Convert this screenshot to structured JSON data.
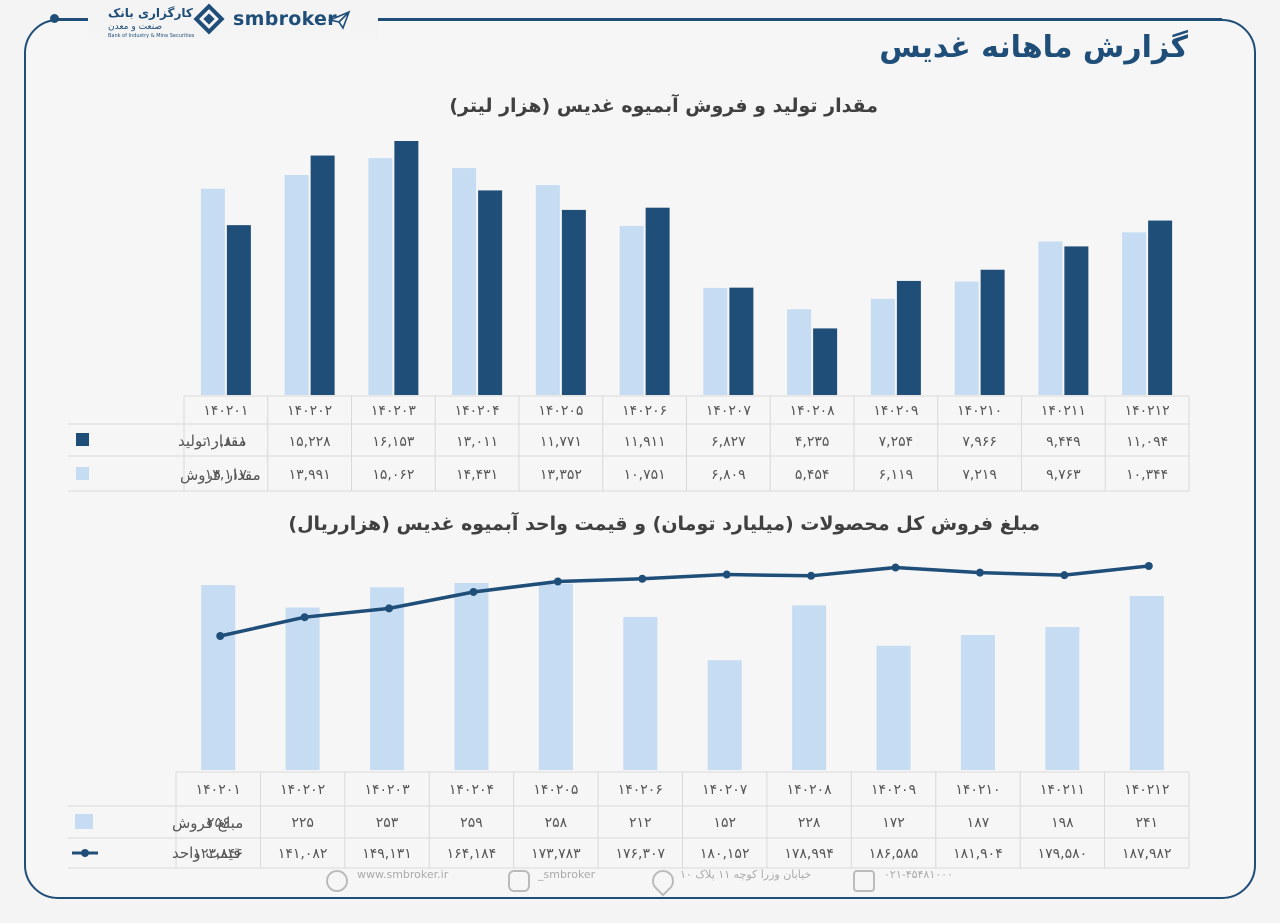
{
  "header": {
    "brand": "smbroker",
    "bank_name": "کارگزاری بانک",
    "bank_sub": "صنعت و معدن",
    "bank_en": "Bank of Industry & Mine Securities",
    "title": "گزارش ماهانه غدیس"
  },
  "colors": {
    "dark": "#1f4e79",
    "light": "#c5dcf2",
    "grid": "#d9d9d9"
  },
  "chart1": {
    "title": "مقدار تولید و فروش آبمیوه غدیس (هزار لیتر)",
    "legend_production": "مقدار تولید",
    "legend_sales": "مقدار فروش"
  },
  "chart2": {
    "title": "مبلغ فروش کل محصولات (میلیارد تومان) و قیمت واحد آبمیوه غدیس (هزارریال)",
    "legend_amount": "مبلغ فروش",
    "legend_price": "قیمت واحد"
  },
  "chart_data": [
    {
      "type": "bar",
      "categories": [
        "۱۴۰۲۰۱",
        "۱۴۰۲۰۲",
        "۱۴۰۲۰۳",
        "۱۴۰۲۰۴",
        "۱۴۰۲۰۵",
        "۱۴۰۲۰۶",
        "۱۴۰۲۰۷",
        "۱۴۰۲۰۸",
        "۱۴۰۲۰۹",
        "۱۴۰۲۱۰",
        "۱۴۰۲۱۱",
        "۱۴۰۲۱۲"
      ],
      "series": [
        {
          "name": "مقدار تولید",
          "values": [
            10801,
            15228,
            16153,
            13011,
            11771,
            11911,
            6827,
            4235,
            7254,
            7966,
            9449,
            11094
          ],
          "labels": [
            "۱۰,۸۰۱",
            "۱۵,۲۲۸",
            "۱۶,۱۵۳",
            "۱۳,۰۱۱",
            "۱۱,۷۷۱",
            "۱۱,۹۱۱",
            "۶,۸۲۷",
            "۴,۲۳۵",
            "۷,۲۵۴",
            "۷,۹۶۶",
            "۹,۴۴۹",
            "۱۱,۰۹۴"
          ]
        },
        {
          "name": "مقدار فروش",
          "values": [
            13117,
            13991,
            15062,
            14431,
            13352,
            10751,
            6809,
            5454,
            6119,
            7219,
            9763,
            10344
          ],
          "labels": [
            "۱۳,۱۱۷",
            "۱۳,۹۹۱",
            "۱۵,۰۶۲",
            "۱۴,۴۳۱",
            "۱۳,۳۵۲",
            "۱۰,۷۵۱",
            "۶,۸۰۹",
            "۵,۴۵۴",
            "۶,۱۱۹",
            "۷,۲۱۹",
            "۹,۷۶۳",
            "۱۰,۳۴۴"
          ]
        }
      ],
      "ylim": [
        0,
        16153
      ]
    },
    {
      "type": "bar",
      "categories": [
        "۱۴۰۲۰۱",
        "۱۴۰۲۰۲",
        "۱۴۰۲۰۳",
        "۱۴۰۲۰۴",
        "۱۴۰۲۰۵",
        "۱۴۰۲۰۶",
        "۱۴۰۲۰۷",
        "۱۴۰۲۰۸",
        "۱۴۰۲۰۹",
        "۱۴۰۲۱۰",
        "۱۴۰۲۱۱",
        "۱۴۰۲۱۲"
      ],
      "series": [
        {
          "name": "مبلغ فروش",
          "kind": "bar",
          "values": [
            256,
            225,
            253,
            259,
            258,
            212,
            152,
            228,
            172,
            187,
            198,
            241
          ],
          "labels": [
            "۲۵۶",
            "۲۲۵",
            "۲۵۳",
            "۲۵۹",
            "۲۵۸",
            "۲۱۲",
            "۱۵۲",
            "۲۲۸",
            "۱۷۲",
            "۱۸۷",
            "۱۹۸",
            "۲۴۱"
          ]
        },
        {
          "name": "قیمت واحد",
          "kind": "line",
          "values": [
            123846,
            141082,
            149131,
            164184,
            173783,
            176307,
            180152,
            178994,
            186585,
            181904,
            179580,
            187982
          ],
          "labels": [
            "۱۲۳,۸۴۶",
            "۱۴۱,۰۸۲",
            "۱۴۹,۱۳۱",
            "۱۶۴,۱۸۴",
            "۱۷۳,۷۸۳",
            "۱۷۶,۳۰۷",
            "۱۸۰,۱۵۲",
            "۱۷۸,۹۹۴",
            "۱۸۶,۵۸۵",
            "۱۸۱,۹۰۴",
            "۱۷۹,۵۸۰",
            "۱۸۷,۹۸۲"
          ]
        }
      ]
    }
  ],
  "footer": {
    "website": "www.smbroker.ir",
    "instagram": "smbroker_",
    "address": "خیابان وزرا کوچه ۱۱ پلاک ۱۰",
    "phone": "۰۲۱-۴۵۴۸۱۰۰۰"
  }
}
